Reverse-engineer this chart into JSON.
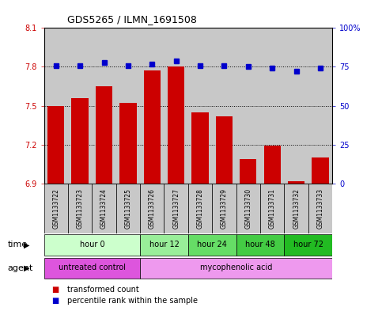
{
  "title": "GDS5265 / ILMN_1691508",
  "samples": [
    "GSM1133722",
    "GSM1133723",
    "GSM1133724",
    "GSM1133725",
    "GSM1133726",
    "GSM1133727",
    "GSM1133728",
    "GSM1133729",
    "GSM1133730",
    "GSM1133731",
    "GSM1133732",
    "GSM1133733"
  ],
  "bar_values": [
    7.5,
    7.56,
    7.65,
    7.52,
    7.77,
    7.8,
    7.45,
    7.42,
    7.09,
    7.19,
    6.92,
    7.1
  ],
  "dot_values": [
    76,
    76,
    78,
    76,
    77,
    79,
    76,
    76,
    75,
    74,
    72,
    74
  ],
  "ylim_left": [
    6.9,
    8.1
  ],
  "ylim_right": [
    0,
    100
  ],
  "yticks_left": [
    6.9,
    7.2,
    7.5,
    7.8,
    8.1
  ],
  "yticks_right": [
    0,
    25,
    50,
    75,
    100
  ],
  "ytick_labels_left": [
    "6.9",
    "7.2",
    "7.5",
    "7.8",
    "8.1"
  ],
  "ytick_labels_right": [
    "0",
    "25",
    "50",
    "75",
    "100%"
  ],
  "bar_color": "#cc0000",
  "dot_color": "#0000cc",
  "bar_width": 0.7,
  "grid_color": "black",
  "time_groups": [
    {
      "label": "hour 0",
      "start": 0,
      "end": 3,
      "color": "#ccffcc"
    },
    {
      "label": "hour 12",
      "start": 4,
      "end": 5,
      "color": "#99ee99"
    },
    {
      "label": "hour 24",
      "start": 6,
      "end": 7,
      "color": "#66dd66"
    },
    {
      "label": "hour 48",
      "start": 8,
      "end": 9,
      "color": "#44cc44"
    },
    {
      "label": "hour 72",
      "start": 10,
      "end": 11,
      "color": "#22bb22"
    }
  ],
  "agent_groups": [
    {
      "label": "untreated control",
      "start": 0,
      "end": 3,
      "color": "#dd55dd"
    },
    {
      "label": "mycophenolic acid",
      "start": 4,
      "end": 11,
      "color": "#ee99ee"
    }
  ],
  "legend_bar_label": "transformed count",
  "legend_dot_label": "percentile rank within the sample",
  "xlabel_time": "time",
  "xlabel_agent": "agent",
  "sample_bg_color": "#c8c8c8",
  "plot_bg_color": "#ffffff",
  "border_color": "#000000"
}
